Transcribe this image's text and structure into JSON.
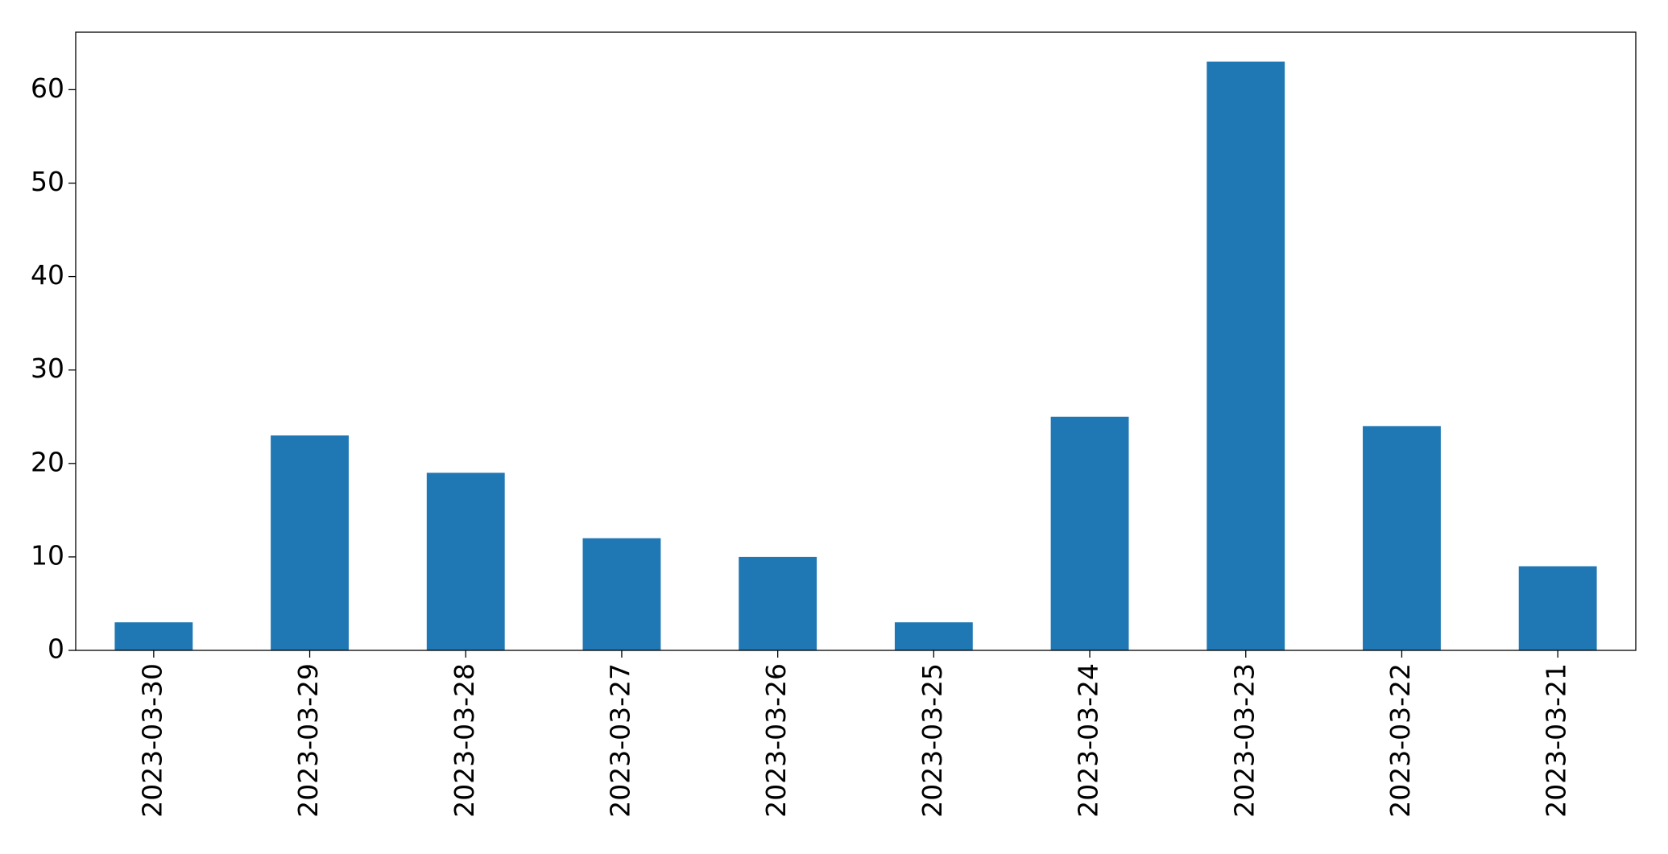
{
  "chart_data": {
    "type": "bar",
    "categories": [
      "2023-03-30",
      "2023-03-29",
      "2023-03-28",
      "2023-03-27",
      "2023-03-26",
      "2023-03-25",
      "2023-03-24",
      "2023-03-23",
      "2023-03-22",
      "2023-03-21"
    ],
    "values": [
      3,
      23,
      19,
      12,
      10,
      3,
      25,
      63,
      24,
      9
    ],
    "color": "#1f77b4",
    "ylim": [
      0,
      66.15
    ],
    "yticks": [
      0,
      10,
      20,
      30,
      40,
      50,
      60
    ],
    "grid": false
  }
}
